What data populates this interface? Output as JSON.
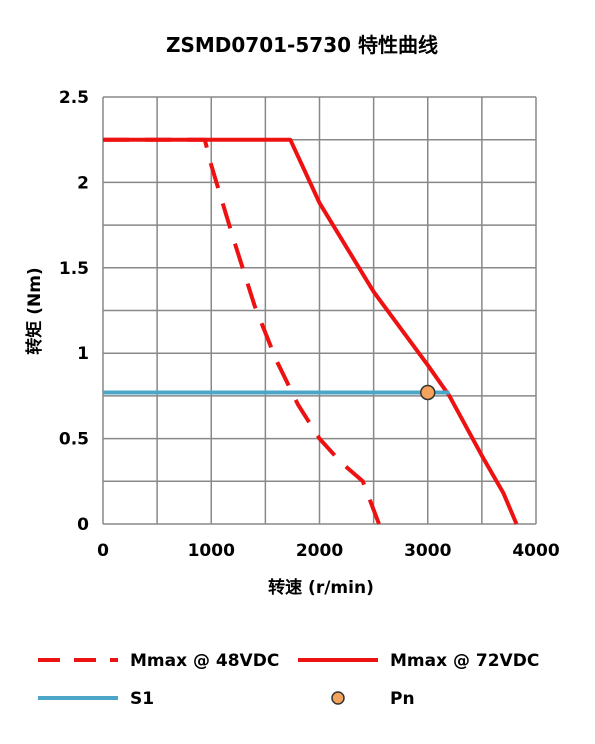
{
  "chart_data": {
    "type": "line",
    "title": "ZSMD0701-5730 特性曲线",
    "xlabel": "转速 (r/min)",
    "ylabel": "转矩 (Nm)",
    "xlim": [
      0,
      4000
    ],
    "ylim": [
      0,
      2.5
    ],
    "x_ticks": [
      "0",
      "1000",
      "2000",
      "3000",
      "4000"
    ],
    "y_ticks": [
      "0",
      "0.5",
      "1",
      "1.5",
      "2",
      "2.5"
    ],
    "x_grid_step": 500,
    "y_grid_step": 0.25,
    "grid": true,
    "legend_position": "bottom",
    "series": [
      {
        "name": "Mmax @ 48VDC",
        "style": "dashed",
        "color": "#ee1111",
        "points": [
          [
            0,
            2.25
          ],
          [
            940,
            2.25
          ],
          [
            1000,
            2.1
          ],
          [
            1200,
            1.68
          ],
          [
            1400,
            1.28
          ],
          [
            1600,
            0.96
          ],
          [
            1800,
            0.7
          ],
          [
            2000,
            0.5
          ],
          [
            2200,
            0.36
          ],
          [
            2400,
            0.25
          ],
          [
            2550,
            0.0
          ]
        ]
      },
      {
        "name": "Mmax @ 72VDC",
        "style": "solid",
        "color": "#ee1111",
        "points": [
          [
            0,
            2.25
          ],
          [
            1730,
            2.25
          ],
          [
            2000,
            1.88
          ],
          [
            2500,
            1.36
          ],
          [
            3000,
            0.93
          ],
          [
            3200,
            0.75
          ],
          [
            3500,
            0.4
          ],
          [
            3700,
            0.18
          ],
          [
            3820,
            0.0
          ]
        ]
      },
      {
        "name": "S1",
        "style": "solid",
        "color": "#4ba6c8",
        "points": [
          [
            0,
            0.77
          ],
          [
            3200,
            0.77
          ]
        ]
      },
      {
        "name": "Pn",
        "style": "marker",
        "color": "#f4a35c",
        "points": [
          [
            3000,
            0.77
          ]
        ]
      }
    ]
  }
}
